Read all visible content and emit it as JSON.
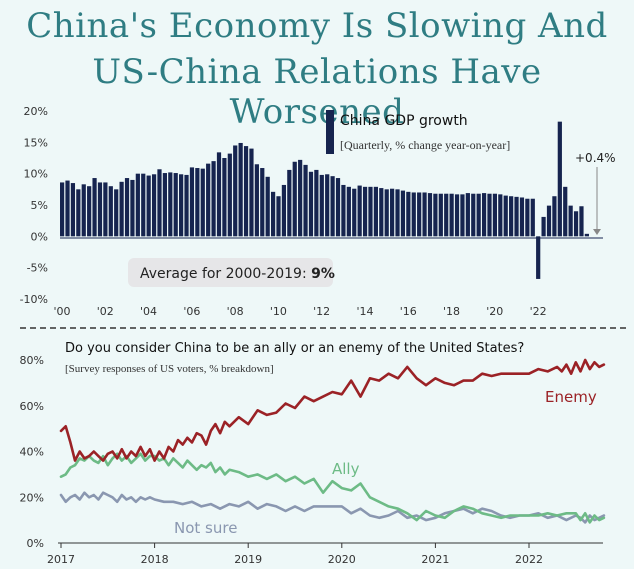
{
  "title_lines": [
    "China's Economy Is Slowing And",
    "US-China Relations Have Worsened"
  ],
  "colors": {
    "background": "#eef8f8",
    "title": "#2f7d83",
    "gdp_bar": "#16244f",
    "enemy": "#9b2226",
    "ally": "#6dbb86",
    "not_sure": "#8a97b0",
    "divider": "#333333",
    "average_box": "#e6e6e8"
  },
  "chart_data": [
    {
      "type": "bar",
      "title": "China GDP growth",
      "subtitle": "[Quarterly, % change year-on-year]",
      "x_tick_labels": [
        "'00",
        "'02",
        "'04",
        "'06",
        "'08",
        "'10",
        "'12",
        "'14",
        "'16",
        "'18",
        "'20",
        "'22"
      ],
      "y_tick_labels": [
        "20%",
        "15%",
        "10%",
        "5%",
        "0%",
        "-5%",
        "-10%"
      ],
      "ylim": [
        -10,
        20
      ],
      "start_quarter": "2000 Q1",
      "values": [
        8.6,
        8.9,
        8.5,
        7.5,
        8.3,
        8.0,
        9.3,
        8.6,
        8.6,
        8.0,
        7.5,
        8.7,
        9.3,
        9.0,
        10.0,
        10.0,
        9.7,
        9.9,
        10.7,
        10.1,
        10.2,
        10.1,
        9.9,
        9.8,
        11.0,
        10.9,
        10.8,
        11.6,
        12.0,
        13.4,
        12.5,
        13.2,
        14.5,
        14.9,
        14.4,
        14.0,
        11.5,
        10.9,
        9.5,
        7.1,
        6.4,
        8.2,
        10.6,
        11.9,
        12.2,
        11.4,
        10.3,
        10.6,
        9.8,
        9.9,
        9.6,
        9.3,
        8.2,
        7.9,
        7.6,
        8.1,
        7.9,
        7.9,
        7.9,
        7.7,
        7.5,
        7.6,
        7.5,
        7.3,
        7.1,
        7.0,
        7.0,
        7.0,
        6.9,
        6.8,
        6.8,
        6.8,
        6.8,
        6.7,
        6.7,
        6.9,
        6.8,
        6.8,
        6.9,
        6.8,
        6.8,
        6.7,
        6.5,
        6.4,
        6.3,
        6.2,
        6.0,
        6.0,
        -6.8,
        3.1,
        4.9,
        6.4,
        18.3,
        7.9,
        4.9,
        4.0,
        4.8,
        0.4
      ],
      "average_label": "Average for 2000-2019: ",
      "average_value": "9%",
      "last_value_label": "+0.4%"
    },
    {
      "type": "line",
      "title": "Do you consider China to be an ally or an enemy of the United States?",
      "subtitle": "[Survey responses of US voters, % breakdown]",
      "x_tick_labels": [
        "2017",
        "2018",
        "2019",
        "2020",
        "2021",
        "2022"
      ],
      "x_tick_values": [
        2017,
        2018,
        2019,
        2020,
        2021,
        2022
      ],
      "y_tick_labels": [
        "80%",
        "60%",
        "40%",
        "20%",
        "0%"
      ],
      "xlim": [
        2017,
        2022.8
      ],
      "ylim": [
        0,
        80
      ],
      "series": [
        {
          "name": "Enemy",
          "x": [
            2017.0,
            2017.05,
            2017.1,
            2017.15,
            2017.2,
            2017.25,
            2017.3,
            2017.35,
            2017.4,
            2017.45,
            2017.5,
            2017.55,
            2017.6,
            2017.65,
            2017.7,
            2017.75,
            2017.8,
            2017.85,
            2017.9,
            2017.95,
            2018.0,
            2018.05,
            2018.1,
            2018.15,
            2018.2,
            2018.25,
            2018.3,
            2018.35,
            2018.4,
            2018.45,
            2018.5,
            2018.55,
            2018.6,
            2018.65,
            2018.7,
            2018.75,
            2018.8,
            2018.9,
            2019.0,
            2019.1,
            2019.2,
            2019.3,
            2019.4,
            2019.5,
            2019.6,
            2019.7,
            2019.8,
            2019.9,
            2020.0,
            2020.1,
            2020.2,
            2020.3,
            2020.4,
            2020.5,
            2020.6,
            2020.7,
            2020.8,
            2020.9,
            2021.0,
            2021.1,
            2021.2,
            2021.3,
            2021.4,
            2021.5,
            2021.6,
            2021.7,
            2021.8,
            2021.9,
            2022.0,
            2022.1,
            2022.2,
            2022.3,
            2022.35,
            2022.4,
            2022.45,
            2022.5,
            2022.55,
            2022.6,
            2022.65,
            2022.7,
            2022.75,
            2022.8
          ],
          "y": [
            49,
            51,
            44,
            36,
            40,
            37,
            38,
            40,
            38,
            36,
            39,
            40,
            37,
            41,
            37,
            40,
            38,
            42,
            38,
            41,
            36,
            40,
            37,
            42,
            40,
            45,
            43,
            46,
            44,
            48,
            47,
            43,
            49,
            52,
            48,
            53,
            51,
            55,
            52,
            58,
            56,
            57,
            61,
            59,
            64,
            62,
            64,
            66,
            65,
            71,
            64,
            72,
            71,
            74,
            72,
            77,
            72,
            69,
            72,
            70,
            69,
            71,
            71,
            74,
            73,
            74,
            74,
            74,
            74,
            76,
            75,
            77,
            75,
            78,
            74,
            79,
            75,
            80,
            76,
            79,
            77,
            78
          ]
        },
        {
          "name": "Ally",
          "x": [
            2017.0,
            2017.05,
            2017.1,
            2017.15,
            2017.2,
            2017.25,
            2017.3,
            2017.35,
            2017.4,
            2017.45,
            2017.5,
            2017.55,
            2017.6,
            2017.65,
            2017.7,
            2017.75,
            2017.8,
            2017.85,
            2017.9,
            2017.95,
            2018.0,
            2018.05,
            2018.1,
            2018.15,
            2018.2,
            2018.25,
            2018.3,
            2018.35,
            2018.4,
            2018.45,
            2018.5,
            2018.55,
            2018.6,
            2018.65,
            2018.7,
            2018.75,
            2018.8,
            2018.9,
            2019.0,
            2019.1,
            2019.2,
            2019.3,
            2019.4,
            2019.5,
            2019.6,
            2019.7,
            2019.8,
            2019.9,
            2020.0,
            2020.1,
            2020.2,
            2020.3,
            2020.4,
            2020.5,
            2020.6,
            2020.7,
            2020.8,
            2020.9,
            2021.0,
            2021.1,
            2021.2,
            2021.3,
            2021.4,
            2021.5,
            2021.6,
            2021.7,
            2021.8,
            2021.9,
            2022.0,
            2022.1,
            2022.2,
            2022.3,
            2022.4,
            2022.5,
            2022.55,
            2022.6,
            2022.65,
            2022.7,
            2022.75,
            2022.8
          ],
          "y": [
            29,
            30,
            33,
            34,
            37,
            36,
            38,
            36,
            35,
            38,
            34,
            37,
            39,
            36,
            38,
            35,
            37,
            39,
            36,
            38,
            38,
            36,
            37,
            34,
            37,
            35,
            33,
            36,
            34,
            32,
            34,
            33,
            35,
            31,
            33,
            30,
            32,
            31,
            29,
            30,
            28,
            30,
            27,
            29,
            26,
            28,
            22,
            27,
            24,
            23,
            26,
            20,
            18,
            16,
            15,
            13,
            10,
            14,
            12,
            11,
            14,
            16,
            15,
            13,
            12,
            11,
            12,
            12,
            12,
            12,
            13,
            12,
            13,
            13,
            10,
            13,
            9,
            12,
            10,
            11
          ]
        },
        {
          "name": "Not sure",
          "x": [
            2017.0,
            2017.05,
            2017.1,
            2017.15,
            2017.2,
            2017.25,
            2017.3,
            2017.35,
            2017.4,
            2017.45,
            2017.5,
            2017.55,
            2017.6,
            2017.65,
            2017.7,
            2017.75,
            2017.8,
            2017.85,
            2017.9,
            2017.95,
            2018.0,
            2018.1,
            2018.2,
            2018.3,
            2018.4,
            2018.5,
            2018.6,
            2018.7,
            2018.8,
            2018.9,
            2019.0,
            2019.1,
            2019.2,
            2019.3,
            2019.4,
            2019.5,
            2019.6,
            2019.7,
            2019.8,
            2019.9,
            2020.0,
            2020.1,
            2020.2,
            2020.3,
            2020.4,
            2020.5,
            2020.6,
            2020.7,
            2020.8,
            2020.9,
            2021.0,
            2021.1,
            2021.2,
            2021.3,
            2021.4,
            2021.5,
            2021.6,
            2021.7,
            2021.8,
            2021.9,
            2022.0,
            2022.1,
            2022.2,
            2022.3,
            2022.4,
            2022.5,
            2022.55,
            2022.6,
            2022.65,
            2022.7,
            2022.75,
            2022.8
          ],
          "y": [
            21,
            18,
            20,
            21,
            19,
            22,
            20,
            21,
            19,
            22,
            21,
            20,
            18,
            21,
            19,
            20,
            18,
            20,
            19,
            20,
            19,
            18,
            18,
            17,
            18,
            16,
            17,
            15,
            17,
            16,
            18,
            15,
            17,
            16,
            14,
            16,
            14,
            16,
            16,
            16,
            16,
            13,
            15,
            12,
            11,
            12,
            14,
            11,
            12,
            10,
            11,
            13,
            14,
            15,
            13,
            15,
            14,
            12,
            11,
            12,
            12,
            13,
            11,
            12,
            10,
            12,
            11,
            9,
            12,
            10,
            11,
            12
          ]
        }
      ],
      "series_labels": [
        "Enemy",
        "Ally",
        "Not sure"
      ]
    }
  ]
}
